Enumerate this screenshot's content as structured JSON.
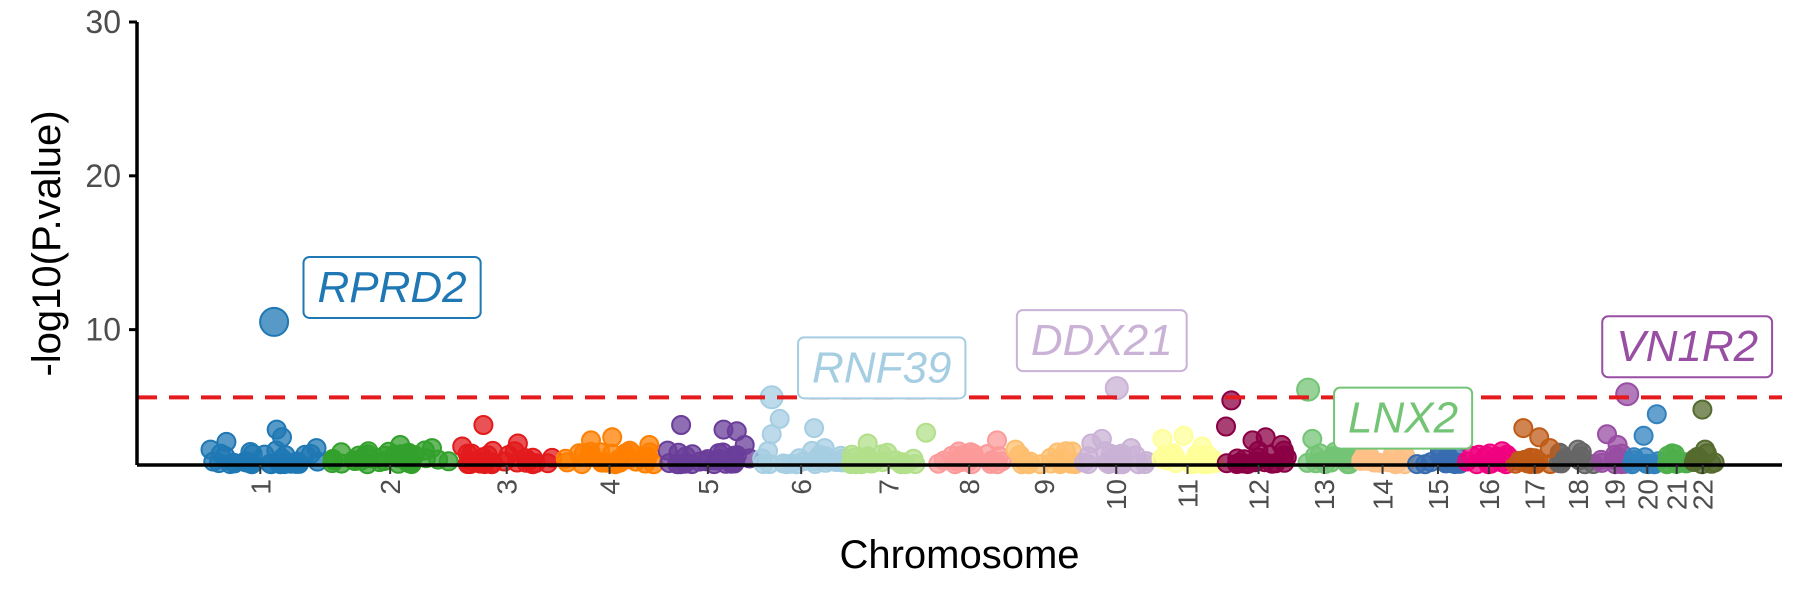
{
  "chart_data": {
    "type": "scatter",
    "subtype": "manhattan",
    "xlabel": "Chromosome",
    "ylabel": "-log10(P.value)",
    "ylim": [
      1.2,
      30
    ],
    "yticks": [
      10,
      20,
      30
    ],
    "grid": false,
    "legend": "none",
    "significance_threshold": 5.6,
    "threshold_color": "#e41a1c",
    "chromosomes": [
      {
        "name": "1",
        "start": 0,
        "end": 248,
        "color": "#1f78b4"
      },
      {
        "name": "2",
        "start": 248,
        "end": 490,
        "color": "#33a02c"
      },
      {
        "name": "3",
        "start": 490,
        "end": 688,
        "color": "#e31a1c"
      },
      {
        "name": "4",
        "start": 688,
        "end": 878,
        "color": "#ff7f00"
      },
      {
        "name": "5",
        "start": 878,
        "end": 1059,
        "color": "#6a3d9a"
      },
      {
        "name": "6",
        "start": 1059,
        "end": 1230,
        "color": "#a6cee3"
      },
      {
        "name": "7",
        "start": 1230,
        "end": 1389,
        "color": "#b2df8a"
      },
      {
        "name": "8",
        "start": 1389,
        "end": 1534,
        "color": "#fb9a99"
      },
      {
        "name": "9",
        "start": 1534,
        "end": 1672,
        "color": "#fdbf6f"
      },
      {
        "name": "10",
        "start": 1672,
        "end": 1806,
        "color": "#cab2d6"
      },
      {
        "name": "11",
        "start": 1806,
        "end": 1941,
        "color": "#ffff99"
      },
      {
        "name": "12",
        "start": 1941,
        "end": 2074,
        "color": "#8b0045"
      },
      {
        "name": "13",
        "start": 2074,
        "end": 2188,
        "color": "#74c476"
      },
      {
        "name": "14",
        "start": 2188,
        "end": 2295,
        "color": "#fdc086"
      },
      {
        "name": "15",
        "start": 2295,
        "end": 2397,
        "color": "#386cb0"
      },
      {
        "name": "16",
        "start": 2397,
        "end": 2487,
        "color": "#f0027f"
      },
      {
        "name": "17",
        "start": 2487,
        "end": 2570,
        "color": "#bf5b17"
      },
      {
        "name": "18",
        "start": 2570,
        "end": 2650,
        "color": "#666666"
      },
      {
        "name": "19",
        "start": 2650,
        "end": 2709,
        "color": "#984ea3"
      },
      {
        "name": "20",
        "start": 2709,
        "end": 2773,
        "color": "#3182bd"
      },
      {
        "name": "21",
        "start": 2773,
        "end": 2820,
        "color": "#4daf4a"
      },
      {
        "name": "22",
        "start": 2820,
        "end": 2871,
        "color": "#556b2f"
      }
    ],
    "highlights": [
      {
        "gene": "RPRD2",
        "chr": "1",
        "pos": 150,
        "y": 10.5,
        "color": "#1f78b4"
      },
      {
        "gene": "RNF39",
        "chr": "6",
        "pos": 30,
        "y": 5.6,
        "color": "#a6cee3"
      },
      {
        "gene": "DDX21",
        "chr": "10",
        "pos": 68,
        "y": 6.2,
        "color": "#cab2d6"
      },
      {
        "gene": "LNX2",
        "chr": "13",
        "pos": 27,
        "y": 6.1,
        "color": "#74c476"
      },
      {
        "gene": "VN1R2",
        "chr": "19",
        "pos": 53,
        "y": 5.8,
        "color": "#984ea3"
      }
    ],
    "top_points": [
      {
        "chr": "1",
        "pos": 30,
        "y": 2.2
      },
      {
        "chr": "1",
        "pos": 60,
        "y": 2.7
      },
      {
        "chr": "1",
        "pos": 155,
        "y": 3.5
      },
      {
        "chr": "1",
        "pos": 165,
        "y": 3.0
      },
      {
        "chr": "1",
        "pos": 230,
        "y": 2.3
      },
      {
        "chr": "2",
        "pos": 80,
        "y": 2.1
      },
      {
        "chr": "2",
        "pos": 140,
        "y": 2.5
      },
      {
        "chr": "2",
        "pos": 200,
        "y": 2.3
      },
      {
        "chr": "3",
        "pos": 15,
        "y": 2.4
      },
      {
        "chr": "3",
        "pos": 55,
        "y": 3.8
      },
      {
        "chr": "3",
        "pos": 120,
        "y": 2.6
      },
      {
        "chr": "4",
        "pos": 60,
        "y": 2.8
      },
      {
        "chr": "4",
        "pos": 100,
        "y": 3.0
      },
      {
        "chr": "4",
        "pos": 170,
        "y": 2.5
      },
      {
        "chr": "5",
        "pos": 40,
        "y": 3.8
      },
      {
        "chr": "5",
        "pos": 35,
        "y": 2.0
      },
      {
        "chr": "5",
        "pos": 120,
        "y": 3.5
      },
      {
        "chr": "5",
        "pos": 145,
        "y": 3.4
      },
      {
        "chr": "5",
        "pos": 160,
        "y": 2.5
      },
      {
        "chr": "6",
        "pos": 30,
        "y": 3.2
      },
      {
        "chr": "6",
        "pos": 45,
        "y": 4.2
      },
      {
        "chr": "6",
        "pos": 110,
        "y": 3.6
      },
      {
        "chr": "6",
        "pos": 130,
        "y": 2.3
      },
      {
        "chr": "7",
        "pos": 40,
        "y": 2.6
      },
      {
        "chr": "7",
        "pos": 150,
        "y": 3.3
      },
      {
        "chr": "8",
        "pos": 40,
        "y": 1.8
      },
      {
        "chr": "8",
        "pos": 80,
        "y": 1.7
      },
      {
        "chr": "8",
        "pos": 125,
        "y": 2.8
      },
      {
        "chr": "9",
        "pos": 15,
        "y": 2.2
      },
      {
        "chr": "9",
        "pos": 110,
        "y": 2.1
      },
      {
        "chr": "10",
        "pos": 20,
        "y": 2.6
      },
      {
        "chr": "10",
        "pos": 40,
        "y": 2.9
      },
      {
        "chr": "10",
        "pos": 95,
        "y": 2.3
      },
      {
        "chr": "11",
        "pos": 20,
        "y": 2.9
      },
      {
        "chr": "11",
        "pos": 60,
        "y": 3.1
      },
      {
        "chr": "11",
        "pos": 95,
        "y": 2.4
      },
      {
        "chr": "12",
        "pos": 5,
        "y": 3.7
      },
      {
        "chr": "12",
        "pos": 15,
        "y": 5.4
      },
      {
        "chr": "12",
        "pos": 55,
        "y": 2.8
      },
      {
        "chr": "12",
        "pos": 80,
        "y": 3.0
      },
      {
        "chr": "12",
        "pos": 110,
        "y": 2.5
      },
      {
        "chr": "13",
        "pos": 35,
        "y": 2.9
      },
      {
        "chr": "13",
        "pos": 40,
        "y": 1.8
      },
      {
        "chr": "13",
        "pos": 90,
        "y": 1.6
      },
      {
        "chr": "14",
        "pos": 20,
        "y": 1.9
      },
      {
        "chr": "14",
        "pos": 75,
        "y": 2.0
      },
      {
        "chr": "15",
        "pos": 70,
        "y": 1.8
      },
      {
        "chr": "16",
        "pos": 40,
        "y": 1.8
      },
      {
        "chr": "16",
        "pos": 70,
        "y": 2.1
      },
      {
        "chr": "17",
        "pos": 20,
        "y": 3.6
      },
      {
        "chr": "17",
        "pos": 50,
        "y": 3.0
      },
      {
        "chr": "17",
        "pos": 70,
        "y": 2.3
      },
      {
        "chr": "18",
        "pos": 15,
        "y": 1.6
      },
      {
        "chr": "18",
        "pos": 40,
        "y": 2.2
      },
      {
        "chr": "19",
        "pos": 15,
        "y": 3.2
      },
      {
        "chr": "19",
        "pos": 35,
        "y": 2.5
      },
      {
        "chr": "20",
        "pos": 25,
        "y": 3.1
      },
      {
        "chr": "20",
        "pos": 50,
        "y": 4.5
      },
      {
        "chr": "21",
        "pos": 20,
        "y": 1.9
      },
      {
        "chr": "22",
        "pos": 25,
        "y": 4.8
      },
      {
        "chr": "22",
        "pos": 30,
        "y": 2.2
      }
    ]
  }
}
